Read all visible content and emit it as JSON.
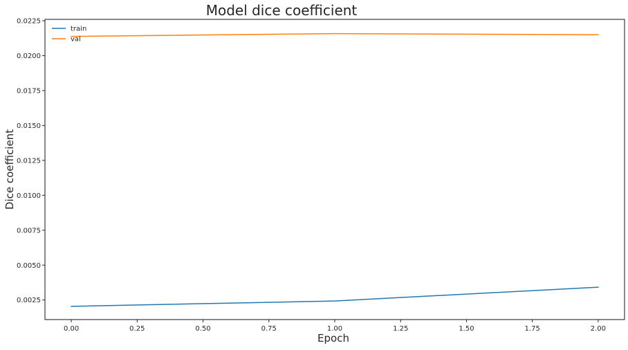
{
  "chart_data": {
    "type": "line",
    "title": "Model dice coefficient",
    "xlabel": "Epoch",
    "ylabel": "Dice coefficient",
    "x": [
      0,
      1,
      2
    ],
    "xlim": [
      -0.1,
      2.1
    ],
    "ylim": [
      0.0011,
      0.0226
    ],
    "xticks": [
      0.0,
      0.25,
      0.5,
      0.75,
      1.0,
      1.25,
      1.5,
      1.75,
      2.0
    ],
    "xtick_labels": [
      "0.00",
      "0.25",
      "0.50",
      "0.75",
      "1.00",
      "1.25",
      "1.50",
      "1.75",
      "2.00"
    ],
    "yticks": [
      0.0025,
      0.005,
      0.0075,
      0.01,
      0.0125,
      0.015,
      0.0175,
      0.02,
      0.0225
    ],
    "ytick_labels": [
      "0.0025",
      "0.0050",
      "0.0075",
      "0.0100",
      "0.0125",
      "0.0150",
      "0.0175",
      "0.0200",
      "0.0225"
    ],
    "grid": false,
    "legend_position": "top-left",
    "series": [
      {
        "name": "train",
        "color": "#1f77b4",
        "values": [
          0.00205,
          0.00243,
          0.00342
        ]
      },
      {
        "name": "val",
        "color": "#ff7f0e",
        "values": [
          0.02138,
          0.02158,
          0.0215
        ]
      }
    ]
  }
}
